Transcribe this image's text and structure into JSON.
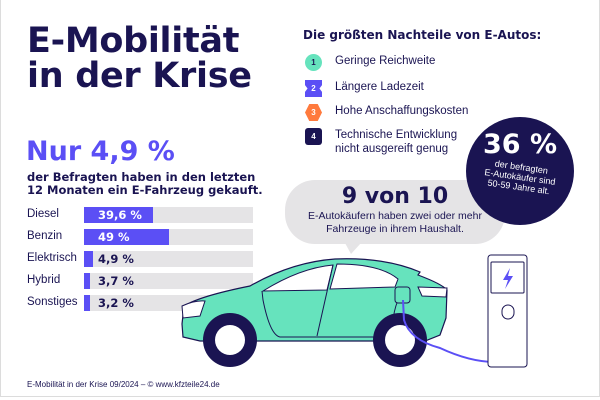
{
  "title": {
    "line1": "E-Mobilität",
    "line2": "in der Krise"
  },
  "headline": {
    "value": "Nur 4,9 %",
    "text_line1": "der Befragten haben in den letzten",
    "text_line2": "12 Monaten ein E-Fahrzeug gekauft."
  },
  "chart_data": {
    "type": "bar",
    "orientation": "horizontal",
    "categories": [
      "Diesel",
      "Benzin",
      "Elektrisch",
      "Hybrid",
      "Sonstiges"
    ],
    "values": [
      39.6,
      49,
      4.9,
      3.7,
      3.2
    ],
    "labels": [
      "39,6 %",
      "49 %",
      "4,9 %",
      "3,7 %",
      "3,2 %"
    ],
    "xlim": [
      0,
      100
    ],
    "bar_color": "#5b4ff5",
    "track_color": "#e5e4e6"
  },
  "disadvantages": {
    "heading": "Die größten Nachteile von E-Autos:",
    "items": [
      {
        "num": "1",
        "line1": "Geringe Reichweite",
        "line2": "",
        "color": "#66e3bd",
        "shape": "circle"
      },
      {
        "num": "2",
        "line1": "Längere Ladezeit",
        "line2": "",
        "color": "#5b4ff5",
        "shape": "ticket"
      },
      {
        "num": "3",
        "line1": "Hohe Anschaffungskosten",
        "line2": "",
        "color": "#ff7a3d",
        "shape": "hexagon"
      },
      {
        "num": "4",
        "line1": "Technische Entwicklung",
        "line2": "nicht ausgereift genug",
        "color": "#1a1452",
        "shape": "rounded-square"
      }
    ]
  },
  "stat_circle": {
    "value": "36 %",
    "line1": "der befragten",
    "line2": "E-Autokäufer sind",
    "line3": "50-59 Jahre alt."
  },
  "stat_bubble": {
    "value": "9 von 10",
    "line1": "E-Autokäufern haben zwei oder mehr",
    "line2": "Fahrzeuge in ihrem Haushalt."
  },
  "footer": "E-Mobilität in der Krise 09/2024 – © www.kfzteile24.de",
  "colors": {
    "navy": "#1a1452",
    "purple": "#5b4ff5",
    "mint": "#66e3bd",
    "orange": "#ff7a3d",
    "gray": "#e5e4e6"
  },
  "illustration": {
    "icons": [
      "electric-car-icon",
      "charging-station-icon",
      "lightning-bolt-icon"
    ]
  }
}
